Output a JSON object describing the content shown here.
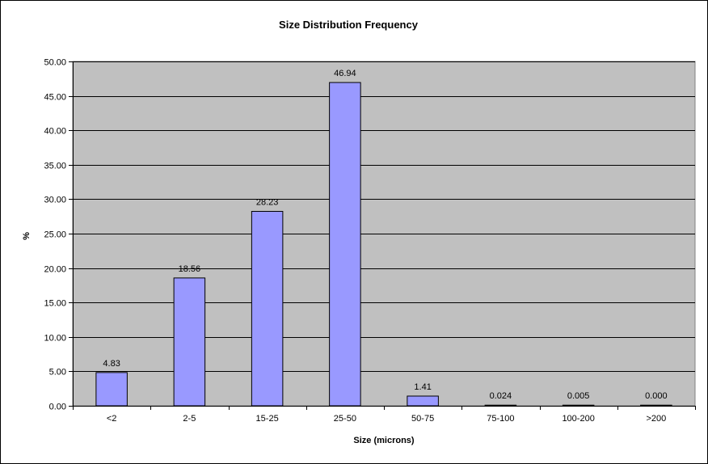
{
  "chart_data": {
    "type": "bar",
    "title": "Size Distribution Frequency",
    "xlabel": "Size (microns)",
    "ylabel": "%",
    "categories": [
      "<2",
      "2-5",
      "15-25",
      "25-50",
      "50-75",
      "75-100",
      "100-200",
      ">200"
    ],
    "values": [
      4.83,
      18.56,
      28.23,
      46.94,
      1.41,
      0.024,
      0.005,
      0.0
    ],
    "data_labels": [
      "4.83",
      "18.56",
      "28.23",
      "46.94",
      "1.41",
      "0.024",
      "0.005",
      "0.000"
    ],
    "ylim": [
      0,
      50
    ],
    "yticks": [
      0,
      5,
      10,
      15,
      20,
      25,
      30,
      35,
      40,
      45,
      50
    ],
    "ytick_labels": [
      "0.00",
      "5.00",
      "10.00",
      "15.00",
      "20.00",
      "25.00",
      "30.00",
      "35.00",
      "40.00",
      "45.00",
      "50.00"
    ],
    "grid": true,
    "legend": "none",
    "colors": {
      "bar_fill": "#9999ff",
      "bar_stroke": "#000000",
      "plot_background": "#c0c0c0",
      "gridline": "#000000"
    }
  }
}
